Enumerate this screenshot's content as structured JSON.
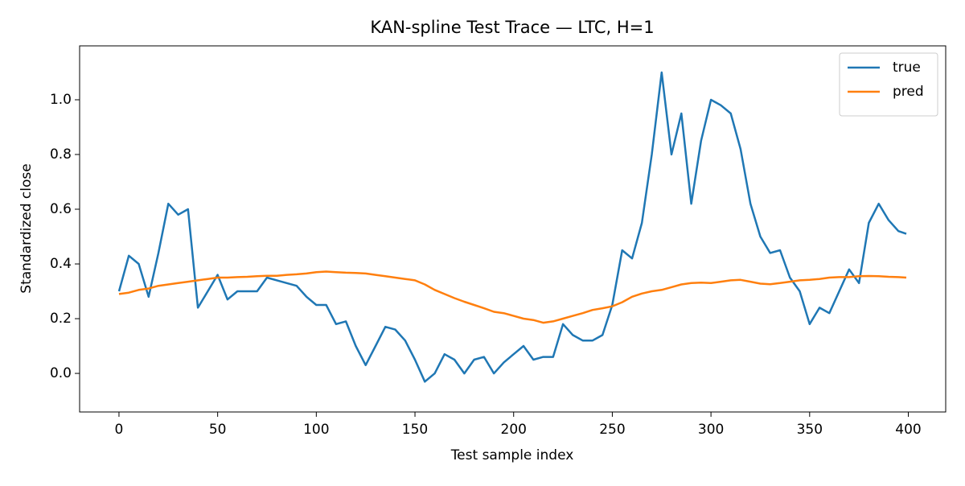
{
  "chart_data": {
    "type": "line",
    "title": "KAN-spline Test Trace — LTC, H=1",
    "xlabel": "Test sample index",
    "ylabel": "Standardized close",
    "x": [
      0,
      5,
      10,
      15,
      20,
      25,
      30,
      35,
      40,
      45,
      50,
      55,
      60,
      65,
      70,
      75,
      80,
      85,
      90,
      95,
      100,
      105,
      110,
      115,
      120,
      125,
      130,
      135,
      140,
      145,
      150,
      155,
      160,
      165,
      170,
      175,
      180,
      185,
      190,
      195,
      200,
      205,
      210,
      215,
      220,
      225,
      230,
      235,
      240,
      245,
      250,
      255,
      260,
      265,
      270,
      275,
      280,
      285,
      290,
      295,
      300,
      305,
      310,
      315,
      320,
      325,
      330,
      335,
      340,
      345,
      350,
      355,
      360,
      365,
      370,
      375,
      380,
      385,
      390,
      395,
      399
    ],
    "series": [
      {
        "name": "true",
        "color": "#1f77b4",
        "values": [
          0.3,
          0.43,
          0.4,
          0.28,
          0.44,
          0.62,
          0.58,
          0.6,
          0.24,
          0.3,
          0.36,
          0.27,
          0.3,
          0.3,
          0.3,
          0.35,
          0.34,
          0.33,
          0.32,
          0.28,
          0.25,
          0.25,
          0.18,
          0.19,
          0.1,
          0.03,
          0.1,
          0.17,
          0.16,
          0.12,
          0.05,
          -0.03,
          0.0,
          0.07,
          0.05,
          0.0,
          0.05,
          0.06,
          0.0,
          0.04,
          0.07,
          0.1,
          0.05,
          0.06,
          0.06,
          0.18,
          0.14,
          0.12,
          0.12,
          0.14,
          0.25,
          0.45,
          0.42,
          0.55,
          0.8,
          1.1,
          0.8,
          0.95,
          0.62,
          0.85,
          1.0,
          0.98,
          0.95,
          0.82,
          0.62,
          0.5,
          0.44,
          0.45,
          0.35,
          0.3,
          0.18,
          0.24,
          0.22,
          0.3,
          0.38,
          0.33,
          0.55,
          0.62,
          0.56,
          0.52,
          0.51
        ]
      },
      {
        "name": "pred",
        "color": "#ff7f0e",
        "values": [
          0.29,
          0.295,
          0.305,
          0.31,
          0.32,
          0.325,
          0.33,
          0.335,
          0.34,
          0.345,
          0.35,
          0.35,
          0.352,
          0.353,
          0.355,
          0.357,
          0.357,
          0.36,
          0.362,
          0.365,
          0.37,
          0.372,
          0.37,
          0.368,
          0.367,
          0.365,
          0.36,
          0.355,
          0.35,
          0.345,
          0.34,
          0.325,
          0.305,
          0.29,
          0.275,
          0.262,
          0.25,
          0.238,
          0.225,
          0.22,
          0.21,
          0.2,
          0.195,
          0.185,
          0.19,
          0.2,
          0.21,
          0.22,
          0.232,
          0.238,
          0.245,
          0.26,
          0.28,
          0.292,
          0.3,
          0.305,
          0.315,
          0.325,
          0.33,
          0.332,
          0.33,
          0.335,
          0.34,
          0.342,
          0.335,
          0.328,
          0.326,
          0.33,
          0.335,
          0.34,
          0.342,
          0.345,
          0.35,
          0.352,
          0.352,
          0.355,
          0.356,
          0.355,
          0.353,
          0.352,
          0.35
        ]
      }
    ],
    "xlim": [
      -19.95,
      418.95
    ],
    "ylim": [
      -0.141,
      1.197
    ],
    "xticks": [
      0,
      50,
      100,
      150,
      200,
      250,
      300,
      350,
      400
    ],
    "yticks": [
      {
        "value": 0,
        "label": "0.0"
      },
      0.2,
      0.4,
      0.6,
      0.8,
      {
        "value": 1,
        "label": "1.0"
      }
    ],
    "legend": "upper right"
  }
}
